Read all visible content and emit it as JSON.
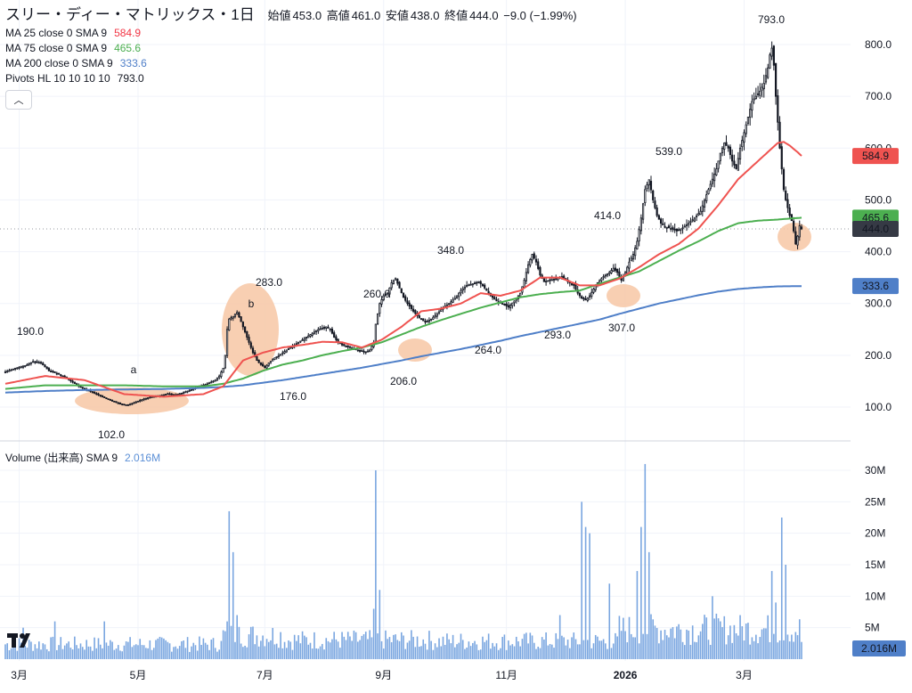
{
  "header": {
    "symbol": "スリー・ディー・マトリックス・1日",
    "open_label": "始値",
    "open": "453.0",
    "high_label": "高値",
    "high": "461.0",
    "low_label": "安値",
    "low": "438.0",
    "close_label": "終値",
    "close": "444.0",
    "change": "−9.0 (−1.99%)"
  },
  "indicators": [
    {
      "label": "MA 25 close 0 SMA 9",
      "value": "584.9",
      "color": "#f23645"
    },
    {
      "label": "MA 75 close 0 SMA 9",
      "value": "465.6",
      "color": "#4caf50"
    },
    {
      "label": "MA 200 close 0 SMA 9",
      "value": "333.6",
      "color": "#4f7fc8"
    },
    {
      "label": "Pivots HL 10 10 10 10",
      "value": "793.0",
      "color": "#131722"
    }
  ],
  "volume_legend": {
    "label": "Volume (出来高) SMA 9",
    "value": "2.016M"
  },
  "colors": {
    "ma25": "#ef5350",
    "ma75": "#4caf50",
    "ma200": "#4f7fc8",
    "volume": "#7aa6e0",
    "highlight": "#f7c7a5",
    "candle": "#131722",
    "annot": "#e53935"
  },
  "chart_data": {
    "type": "candlestick",
    "price_axis": {
      "ticks": [
        100,
        200,
        300,
        400,
        500,
        600,
        700,
        800
      ],
      "tick_labels": [
        "100.0",
        "200.0",
        "300.0",
        "400.0",
        "500.0",
        "600.0",
        "700.0",
        "800.0"
      ],
      "range": [
        70,
        830
      ]
    },
    "volume_axis": {
      "ticks": [
        5,
        10,
        15,
        20,
        25,
        30
      ],
      "tick_labels": [
        "5M",
        "10M",
        "15M",
        "20M",
        "25M",
        "30M"
      ],
      "unit": "M"
    },
    "time_axis": {
      "labels": [
        "3月",
        "5月",
        "7月",
        "9月",
        "11月",
        "2026",
        "3月"
      ]
    },
    "price_badges": [
      {
        "name": "ma25",
        "text": "584.9",
        "value": 584.9,
        "bg": "#ef5350",
        "fg": "#ffffff"
      },
      {
        "name": "ma75",
        "text": "465.6",
        "value": 465.6,
        "bg": "#4caf50",
        "fg": "#131722"
      },
      {
        "name": "last",
        "text": "444.0",
        "value": 444.0,
        "bg": "#363a45",
        "fg": "#ffffff"
      },
      {
        "name": "ma200",
        "text": "333.6",
        "value": 333.6,
        "bg": "#4f7fc8",
        "fg": "#ffffff"
      }
    ],
    "volume_badge": "2.016M",
    "pivot_labels": [
      "190.0",
      "102.0",
      "283.0",
      "176.0",
      "260.0",
      "206.0",
      "348.0",
      "264.0",
      "293.0",
      "414.0",
      "307.0",
      "539.0",
      "793.0"
    ],
    "annotations": [
      "a",
      "b"
    ],
    "price_path": [
      [
        0,
        168
      ],
      [
        5,
        175
      ],
      [
        10,
        180
      ],
      [
        14,
        188
      ],
      [
        18,
        185
      ],
      [
        22,
        170
      ],
      [
        26,
        165
      ],
      [
        30,
        158
      ],
      [
        34,
        148
      ],
      [
        38,
        138
      ],
      [
        42,
        132
      ],
      [
        46,
        125
      ],
      [
        50,
        118
      ],
      [
        54,
        112
      ],
      [
        58,
        106
      ],
      [
        62,
        104
      ],
      [
        66,
        110
      ],
      [
        70,
        116
      ],
      [
        74,
        120
      ],
      [
        78,
        122
      ],
      [
        82,
        126
      ],
      [
        86,
        124
      ],
      [
        90,
        128
      ],
      [
        94,
        134
      ],
      [
        98,
        140
      ],
      [
        102,
        145
      ],
      [
        106,
        152
      ],
      [
        108,
        160
      ],
      [
        110,
        175
      ],
      [
        111,
        200
      ],
      [
        112,
        250
      ],
      [
        113,
        270
      ],
      [
        115,
        275
      ],
      [
        117,
        283
      ],
      [
        119,
        265
      ],
      [
        121,
        245
      ],
      [
        123,
        225
      ],
      [
        125,
        205
      ],
      [
        127,
        190
      ],
      [
        129,
        182
      ],
      [
        131,
        176
      ],
      [
        133,
        185
      ],
      [
        136,
        195
      ],
      [
        139,
        202
      ],
      [
        142,
        210
      ],
      [
        146,
        220
      ],
      [
        150,
        230
      ],
      [
        154,
        240
      ],
      [
        158,
        250
      ],
      [
        162,
        255
      ],
      [
        164,
        250
      ],
      [
        166,
        235
      ],
      [
        168,
        225
      ],
      [
        170,
        220
      ],
      [
        174,
        215
      ],
      [
        178,
        210
      ],
      [
        180,
        208
      ],
      [
        182,
        206
      ],
      [
        184,
        210
      ],
      [
        186,
        225
      ],
      [
        187,
        260
      ],
      [
        189,
        300
      ],
      [
        191,
        315
      ],
      [
        193,
        320
      ],
      [
        195,
        340
      ],
      [
        197,
        348
      ],
      [
        199,
        330
      ],
      [
        201,
        312
      ],
      [
        203,
        300
      ],
      [
        206,
        285
      ],
      [
        209,
        272
      ],
      [
        212,
        264
      ],
      [
        215,
        270
      ],
      [
        218,
        280
      ],
      [
        221,
        292
      ],
      [
        224,
        300
      ],
      [
        227,
        310
      ],
      [
        230,
        325
      ],
      [
        233,
        335
      ],
      [
        236,
        338
      ],
      [
        239,
        342
      ],
      [
        242,
        330
      ],
      [
        245,
        315
      ],
      [
        248,
        305
      ],
      [
        251,
        300
      ],
      [
        254,
        293
      ],
      [
        257,
        305
      ],
      [
        260,
        320
      ],
      [
        262,
        345
      ],
      [
        264,
        375
      ],
      [
        266,
        395
      ],
      [
        268,
        380
      ],
      [
        270,
        355
      ],
      [
        272,
        342
      ],
      [
        275,
        345
      ],
      [
        278,
        348
      ],
      [
        281,
        352
      ],
      [
        284,
        342
      ],
      [
        287,
        335
      ],
      [
        289,
        320
      ],
      [
        291,
        310
      ],
      [
        293,
        307
      ],
      [
        295,
        315
      ],
      [
        297,
        328
      ],
      [
        299,
        340
      ],
      [
        302,
        352
      ],
      [
        305,
        360
      ],
      [
        307,
        368
      ],
      [
        309,
        360
      ],
      [
        311,
        345
      ],
      [
        313,
        360
      ],
      [
        315,
        380
      ],
      [
        317,
        395
      ],
      [
        319,
        420
      ],
      [
        321,
        465
      ],
      [
        323,
        520
      ],
      [
        325,
        539
      ],
      [
        327,
        500
      ],
      [
        329,
        470
      ],
      [
        331,
        455
      ],
      [
        333,
        448
      ],
      [
        336,
        445
      ],
      [
        339,
        440
      ],
      [
        342,
        446
      ],
      [
        345,
        455
      ],
      [
        348,
        465
      ],
      [
        351,
        478
      ],
      [
        354,
        510
      ],
      [
        357,
        540
      ],
      [
        359,
        560
      ],
      [
        361,
        590
      ],
      [
        363,
        610
      ],
      [
        365,
        600
      ],
      [
        367,
        575
      ],
      [
        369,
        560
      ],
      [
        371,
        600
      ],
      [
        373,
        630
      ],
      [
        375,
        660
      ],
      [
        377,
        690
      ],
      [
        379,
        700
      ],
      [
        381,
        710
      ],
      [
        383,
        725
      ],
      [
        385,
        755
      ],
      [
        386,
        780
      ],
      [
        387,
        793
      ],
      [
        388,
        760
      ],
      [
        389,
        700
      ],
      [
        390,
        650
      ],
      [
        391,
        600
      ],
      [
        392,
        560
      ],
      [
        393,
        520
      ],
      [
        394,
        500
      ],
      [
        395,
        485
      ],
      [
        396,
        470
      ],
      [
        397,
        460
      ],
      [
        398,
        440
      ],
      [
        399,
        415
      ],
      [
        400,
        430
      ],
      [
        401,
        450
      ],
      [
        402,
        444
      ]
    ],
    "ma25_path": [
      [
        0,
        145
      ],
      [
        20,
        160
      ],
      [
        40,
        152
      ],
      [
        60,
        125
      ],
      [
        80,
        120
      ],
      [
        100,
        125
      ],
      [
        110,
        140
      ],
      [
        120,
        190
      ],
      [
        130,
        205
      ],
      [
        140,
        215
      ],
      [
        150,
        220
      ],
      [
        160,
        226
      ],
      [
        170,
        225
      ],
      [
        180,
        215
      ],
      [
        190,
        230
      ],
      [
        200,
        255
      ],
      [
        210,
        285
      ],
      [
        220,
        290
      ],
      [
        230,
        300
      ],
      [
        240,
        320
      ],
      [
        250,
        315
      ],
      [
        260,
        325
      ],
      [
        270,
        350
      ],
      [
        280,
        350
      ],
      [
        290,
        335
      ],
      [
        300,
        335
      ],
      [
        310,
        348
      ],
      [
        320,
        370
      ],
      [
        330,
        395
      ],
      [
        340,
        415
      ],
      [
        350,
        445
      ],
      [
        360,
        490
      ],
      [
        370,
        540
      ],
      [
        380,
        575
      ],
      [
        390,
        610
      ],
      [
        393,
        612
      ],
      [
        396,
        605
      ],
      [
        400,
        592
      ],
      [
        402,
        585
      ]
    ],
    "ma75_path": [
      [
        0,
        135
      ],
      [
        20,
        142
      ],
      [
        40,
        142
      ],
      [
        60,
        142
      ],
      [
        80,
        140
      ],
      [
        100,
        140
      ],
      [
        110,
        145
      ],
      [
        120,
        155
      ],
      [
        130,
        170
      ],
      [
        140,
        182
      ],
      [
        150,
        190
      ],
      [
        160,
        200
      ],
      [
        170,
        208
      ],
      [
        180,
        215
      ],
      [
        190,
        225
      ],
      [
        200,
        240
      ],
      [
        210,
        255
      ],
      [
        220,
        268
      ],
      [
        230,
        280
      ],
      [
        240,
        292
      ],
      [
        250,
        302
      ],
      [
        260,
        312
      ],
      [
        270,
        318
      ],
      [
        280,
        322
      ],
      [
        290,
        325
      ],
      [
        300,
        338
      ],
      [
        310,
        350
      ],
      [
        320,
        362
      ],
      [
        330,
        382
      ],
      [
        340,
        402
      ],
      [
        350,
        420
      ],
      [
        360,
        440
      ],
      [
        370,
        455
      ],
      [
        380,
        460
      ],
      [
        390,
        462
      ],
      [
        396,
        464
      ],
      [
        402,
        465.6
      ]
    ],
    "ma200_path": [
      [
        0,
        128
      ],
      [
        20,
        131
      ],
      [
        40,
        133
      ],
      [
        60,
        134
      ],
      [
        80,
        135
      ],
      [
        100,
        137
      ],
      [
        110,
        139
      ],
      [
        120,
        142
      ],
      [
        130,
        147
      ],
      [
        140,
        152
      ],
      [
        150,
        158
      ],
      [
        160,
        164
      ],
      [
        170,
        170
      ],
      [
        180,
        176
      ],
      [
        190,
        183
      ],
      [
        200,
        190
      ],
      [
        210,
        198
      ],
      [
        220,
        205
      ],
      [
        230,
        212
      ],
      [
        240,
        220
      ],
      [
        250,
        228
      ],
      [
        260,
        237
      ],
      [
        270,
        245
      ],
      [
        280,
        253
      ],
      [
        290,
        261
      ],
      [
        300,
        269
      ],
      [
        310,
        280
      ],
      [
        320,
        290
      ],
      [
        330,
        300
      ],
      [
        340,
        308
      ],
      [
        350,
        316
      ],
      [
        360,
        323
      ],
      [
        370,
        328
      ],
      [
        380,
        331
      ],
      [
        390,
        333
      ],
      [
        402,
        333.6
      ]
    ],
    "volume_profile": [
      {
        "from": 0,
        "to": 110,
        "base": 2.5,
        "spikes": [
          [
            9,
            5
          ],
          [
            25,
            6
          ],
          [
            50,
            6
          ]
        ]
      },
      {
        "from": 110,
        "to": 140,
        "base": 4.0,
        "spikes": [
          [
            112,
            6
          ],
          [
            113,
            23.5
          ],
          [
            115,
            17
          ],
          [
            117,
            7
          ]
        ]
      },
      {
        "from": 140,
        "to": 215,
        "base": 3.2,
        "spikes": [
          [
            186,
            8
          ],
          [
            187,
            30
          ],
          [
            189,
            11
          ]
        ]
      },
      {
        "from": 215,
        "to": 310,
        "base": 3.0,
        "spikes": [
          [
            280,
            7
          ],
          [
            291,
            25
          ],
          [
            293,
            21
          ],
          [
            295,
            20
          ],
          [
            305,
            12
          ]
        ]
      },
      {
        "from": 310,
        "to": 402,
        "base": 5.0,
        "spikes": [
          [
            319,
            14
          ],
          [
            321,
            21
          ],
          [
            323,
            31
          ],
          [
            325,
            17
          ],
          [
            357,
            10
          ],
          [
            387,
            14
          ],
          [
            389,
            9
          ],
          [
            392,
            22.5
          ],
          [
            394,
            15
          ]
        ]
      }
    ]
  }
}
